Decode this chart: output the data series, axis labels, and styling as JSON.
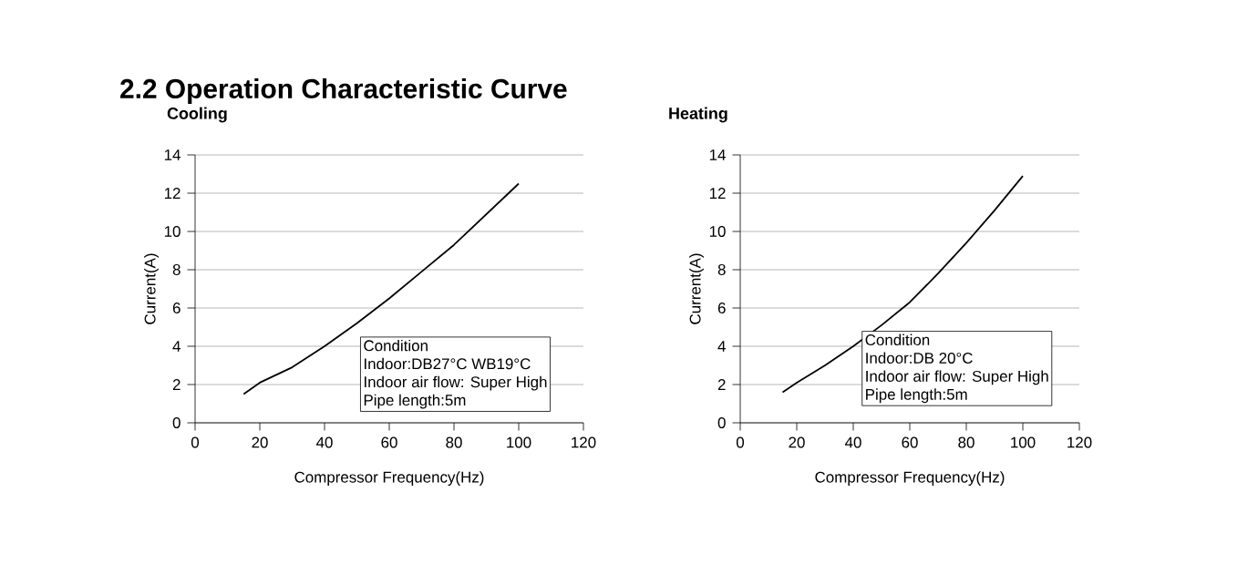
{
  "chart_data": [
    {
      "type": "line",
      "title": "2.2 Operation Characteristic Curve",
      "subtitle": "Cooling",
      "xlabel": "Compressor Frequency(Hz)",
      "ylabel": "Current(A)",
      "x": [
        15,
        20,
        30,
        40,
        50,
        60,
        70,
        80,
        90,
        100
      ],
      "series": [
        {
          "color": "#000000",
          "values": [
            1.5,
            2.1,
            2.9,
            4.0,
            5.2,
            6.5,
            7.9,
            9.3,
            10.9,
            12.5
          ]
        }
      ],
      "xlim": [
        0,
        120
      ],
      "xticks": [
        0,
        20,
        40,
        60,
        80,
        100,
        120
      ],
      "ylim": [
        0,
        14
      ],
      "yticks": [
        0,
        2,
        4,
        6,
        8,
        10,
        12,
        14
      ],
      "grid": "y",
      "line_style": "solid",
      "annotations": [
        "Condition",
        "Indoor:DB27°C  WB19°C",
        "Indoor air flow: Super High",
        "Pipe length:5m"
      ]
    },
    {
      "type": "line",
      "subtitle": "Heating",
      "xlabel": "Compressor Frequency(Hz)",
      "ylabel": "Current(A)",
      "x": [
        15,
        20,
        30,
        40,
        50,
        60,
        70,
        80,
        90,
        100
      ],
      "series": [
        {
          "color": "#000000",
          "values": [
            1.6,
            2.1,
            3.0,
            4.0,
            5.1,
            6.3,
            7.8,
            9.4,
            11.1,
            12.9
          ]
        }
      ],
      "xlim": [
        0,
        120
      ],
      "xticks": [
        0,
        20,
        40,
        60,
        80,
        100,
        120
      ],
      "ylim": [
        0,
        14
      ],
      "yticks": [
        0,
        2,
        4,
        6,
        8,
        10,
        12,
        14
      ],
      "grid": "y",
      "line_style": "solid",
      "annotations": [
        "Condition",
        "Indoor:DB 20°C",
        "Indoor air flow: Super High",
        "Pipe length:5m"
      ]
    }
  ]
}
